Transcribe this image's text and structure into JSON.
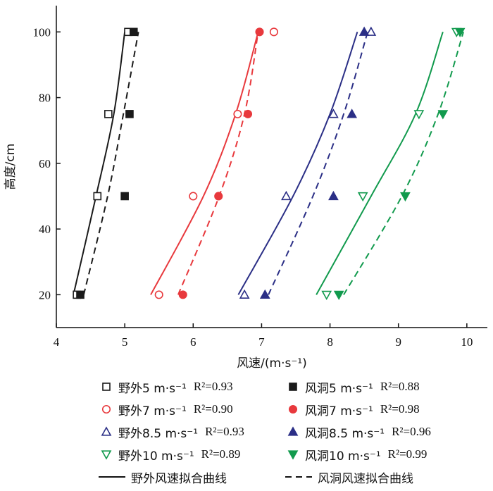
{
  "chart_data": {
    "type": "scatter",
    "xlabel": "风速/(m·s⁻¹)",
    "ylabel": "高度/cm",
    "xlim": [
      4,
      10.3
    ],
    "ylim": [
      10,
      108
    ],
    "xticks": [
      4,
      5,
      6,
      7,
      8,
      9,
      10
    ],
    "yticks": [
      20,
      40,
      60,
      80,
      100
    ],
    "series": [
      {
        "name": "野外5 m·s⁻¹",
        "r2": "R²=0.93",
        "color": "#1a1a1a",
        "marker": "square-open",
        "points": [
          [
            4.3,
            20
          ],
          [
            4.6,
            50
          ],
          [
            4.76,
            75
          ],
          [
            5.05,
            100
          ]
        ]
      },
      {
        "name": "风洞5  m·s⁻¹",
        "r2": "R²=0.88",
        "color": "#1a1a1a",
        "marker": "square-filled",
        "points": [
          [
            4.35,
            20
          ],
          [
            5.0,
            50
          ],
          [
            5.07,
            75
          ],
          [
            5.13,
            100
          ]
        ]
      },
      {
        "name": "野外7 m·s⁻¹",
        "r2": "R²=0.90",
        "color": "#e8393d",
        "marker": "circle-open",
        "points": [
          [
            5.5,
            20
          ],
          [
            6.0,
            50
          ],
          [
            6.65,
            75
          ],
          [
            7.18,
            100
          ]
        ]
      },
      {
        "name": "风洞7 m·s⁻¹",
        "r2": "R²=0.98",
        "color": "#e8393d",
        "marker": "circle-filled",
        "points": [
          [
            5.85,
            20
          ],
          [
            6.37,
            50
          ],
          [
            6.8,
            75
          ],
          [
            6.97,
            100
          ]
        ]
      },
      {
        "name": "野外8.5 m·s⁻¹",
        "r2": "R²=0.93",
        "color": "#2b2f86",
        "marker": "triangle-up-open",
        "points": [
          [
            6.75,
            20
          ],
          [
            7.36,
            50
          ],
          [
            8.05,
            75
          ],
          [
            8.6,
            100
          ]
        ]
      },
      {
        "name": "风洞8.5 m·s⁻¹",
        "r2": "R²=0.96",
        "color": "#2b2f86",
        "marker": "triangle-up-filled",
        "points": [
          [
            7.05,
            20
          ],
          [
            8.05,
            50
          ],
          [
            8.32,
            75
          ],
          [
            8.5,
            100
          ]
        ]
      },
      {
        "name": "野外10 m·s⁻¹",
        "r2": "R²=0.89",
        "color": "#119a4d",
        "marker": "triangle-down-open",
        "points": [
          [
            7.95,
            20
          ],
          [
            8.48,
            50
          ],
          [
            9.3,
            75
          ],
          [
            9.85,
            100
          ]
        ]
      },
      {
        "name": "风洞10 m·s⁻¹",
        "r2": "R²=0.99",
        "color": "#119a4d",
        "marker": "triangle-down-filled",
        "points": [
          [
            8.13,
            20
          ],
          [
            9.1,
            50
          ],
          [
            9.65,
            75
          ],
          [
            9.9,
            100
          ]
        ]
      }
    ],
    "fit_curves": [
      {
        "group": "5",
        "style": "solid",
        "color": "#1a1a1a",
        "points": [
          [
            4.25,
            20
          ],
          [
            4.58,
            50
          ],
          [
            4.84,
            75
          ],
          [
            5.0,
            100
          ]
        ]
      },
      {
        "group": "5",
        "style": "dashed",
        "color": "#1a1a1a",
        "points": [
          [
            4.4,
            20
          ],
          [
            4.75,
            50
          ],
          [
            4.98,
            75
          ],
          [
            5.2,
            100
          ]
        ]
      },
      {
        "group": "7",
        "style": "solid",
        "color": "#e8393d",
        "points": [
          [
            5.38,
            20
          ],
          [
            6.15,
            50
          ],
          [
            6.62,
            75
          ],
          [
            6.95,
            100
          ]
        ]
      },
      {
        "group": "7",
        "style": "dashed",
        "color": "#e8393d",
        "points": [
          [
            5.78,
            20
          ],
          [
            6.38,
            50
          ],
          [
            6.75,
            75
          ],
          [
            6.95,
            100
          ]
        ]
      },
      {
        "group": "8.5",
        "style": "solid",
        "color": "#2b2f86",
        "points": [
          [
            6.66,
            20
          ],
          [
            7.46,
            50
          ],
          [
            8.0,
            75
          ],
          [
            8.4,
            100
          ]
        ]
      },
      {
        "group": "8.5",
        "style": "dashed",
        "color": "#2b2f86",
        "points": [
          [
            7.1,
            20
          ],
          [
            7.75,
            50
          ],
          [
            8.2,
            75
          ],
          [
            8.55,
            100
          ]
        ]
      },
      {
        "group": "10",
        "style": "solid",
        "color": "#119a4d",
        "points": [
          [
            7.8,
            20
          ],
          [
            8.6,
            50
          ],
          [
            9.25,
            75
          ],
          [
            9.65,
            100
          ]
        ]
      },
      {
        "group": "10",
        "style": "dashed",
        "color": "#119a4d",
        "points": [
          [
            8.2,
            20
          ],
          [
            9.05,
            50
          ],
          [
            9.58,
            75
          ],
          [
            9.95,
            100
          ]
        ]
      }
    ],
    "legend_line_labels": {
      "solid": "野外风速拟合曲线",
      "dashed": "风洞风速拟合曲线"
    },
    "legend_placement": "bottom",
    "grid": false
  }
}
